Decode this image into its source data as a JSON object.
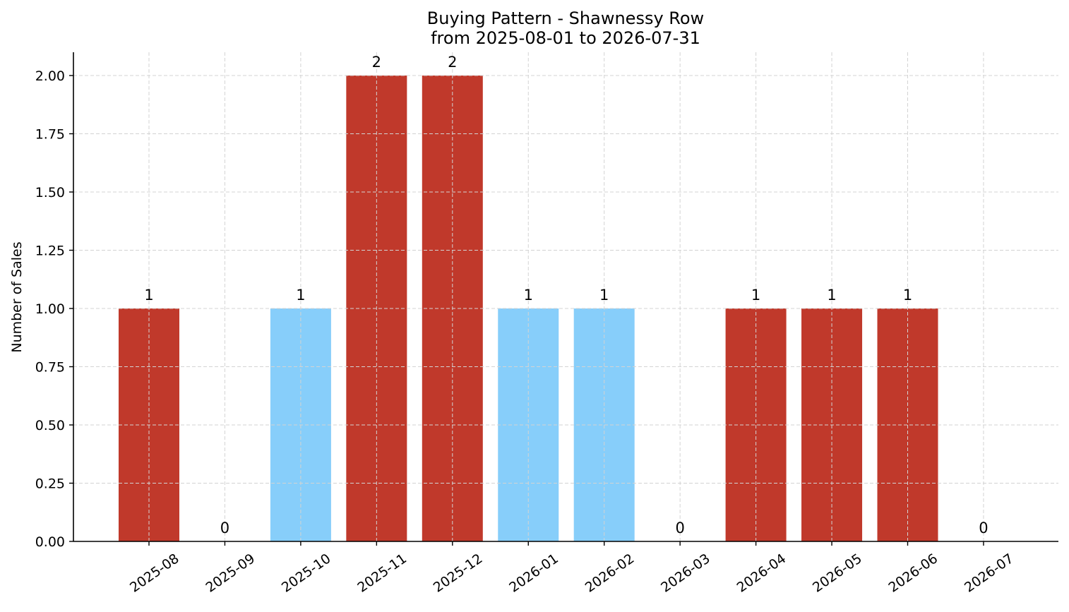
{
  "chart_data": {
    "type": "bar",
    "title": "Buying Pattern - Shawnessy Row",
    "subtitle": "from 2025-08-01 to 2026-07-31",
    "xlabel": "",
    "ylabel": "Number of Sales",
    "ylim": [
      0,
      2.1
    ],
    "yticks": [
      0.0,
      0.25,
      0.5,
      0.75,
      1.0,
      1.25,
      1.5,
      1.75,
      2.0
    ],
    "ytick_labels": [
      "0.00",
      "0.25",
      "0.50",
      "0.75",
      "1.00",
      "1.25",
      "1.50",
      "1.75",
      "2.00"
    ],
    "grid": true,
    "categories": [
      "2025-08",
      "2025-09",
      "2025-10",
      "2025-11",
      "2025-12",
      "2026-01",
      "2026-02",
      "2026-03",
      "2026-04",
      "2026-05",
      "2026-06",
      "2026-07"
    ],
    "values": [
      1,
      0,
      1,
      2,
      2,
      1,
      1,
      0,
      1,
      1,
      1,
      0
    ],
    "data_labels": [
      "1",
      "0",
      "1",
      "2",
      "2",
      "1",
      "1",
      "0",
      "1",
      "1",
      "1",
      "0"
    ],
    "bar_colors": [
      "#c0392b",
      "#c0392b",
      "#87cefa",
      "#c0392b",
      "#c0392b",
      "#87cefa",
      "#87cefa",
      "#c0392b",
      "#c0392b",
      "#c0392b",
      "#c0392b",
      "#c0392b"
    ]
  }
}
